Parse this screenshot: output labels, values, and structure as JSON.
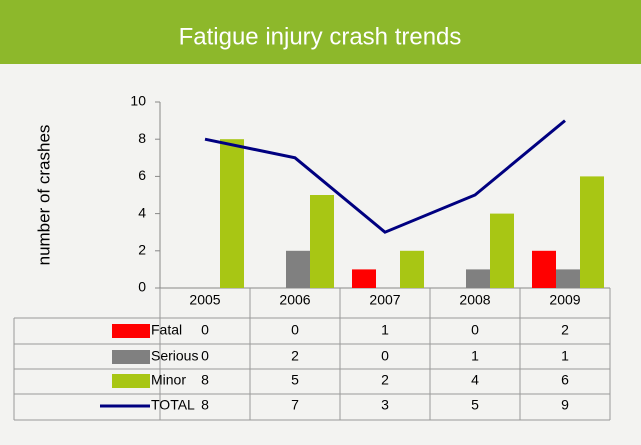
{
  "chart_data": {
    "type": "bar",
    "title": "Fatigue injury crash trends",
    "y_label": "number of crashes",
    "categories": [
      "2005",
      "2006",
      "2007",
      "2008",
      "2009"
    ],
    "series": [
      {
        "name": "Fatal",
        "color": "#ff0000",
        "values": [
          0,
          0,
          1,
          0,
          2
        ]
      },
      {
        "name": "Serious",
        "color": "#808080",
        "values": [
          0,
          2,
          0,
          1,
          1
        ]
      },
      {
        "name": "Minor",
        "color": "#a8c614",
        "values": [
          8,
          5,
          2,
          4,
          6
        ]
      },
      {
        "name": "TOTAL",
        "color": "#000080",
        "type": "line",
        "values": [
          8,
          7,
          3,
          5,
          9
        ]
      }
    ],
    "ylim": [
      0,
      10
    ],
    "yticks": [
      0,
      2,
      4,
      6,
      8,
      10
    ],
    "data_table": true
  }
}
